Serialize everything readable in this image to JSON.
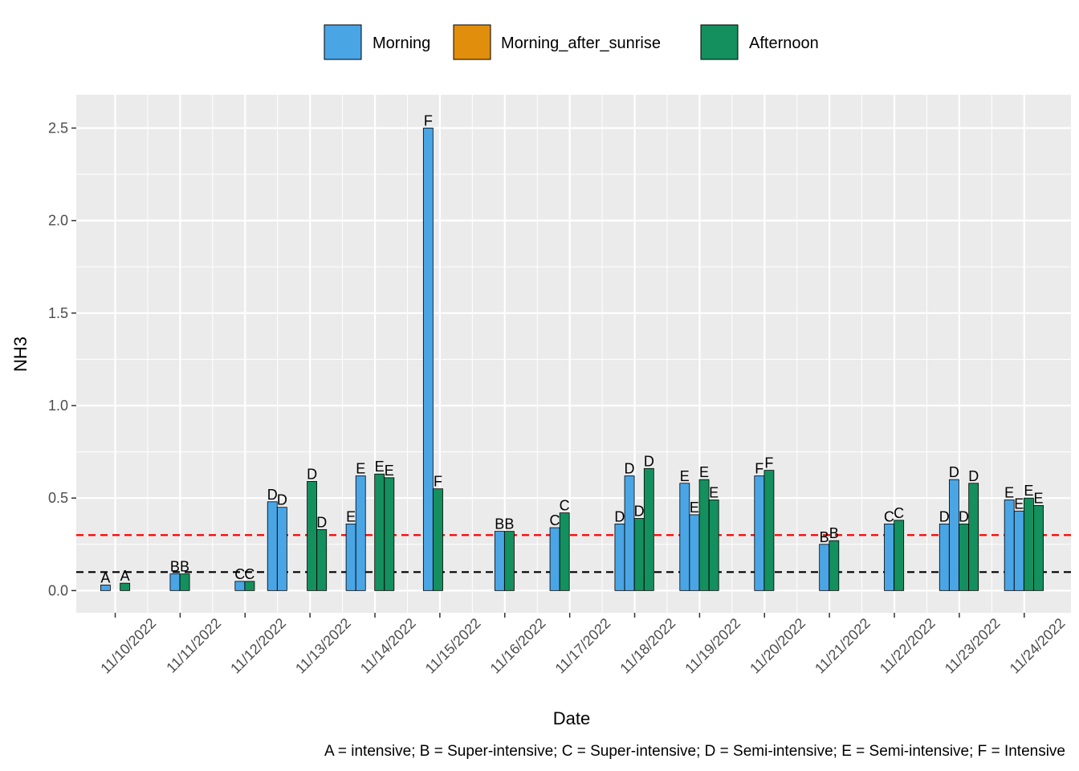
{
  "chart_data": {
    "type": "bar",
    "xlabel": "Date",
    "ylabel": "NH3",
    "ylim": [
      -0.12,
      2.68
    ],
    "yticks": [
      "0.0",
      "0.5",
      "1.0",
      "1.5",
      "2.0",
      "2.5"
    ],
    "ytick_values": [
      0,
      0.5,
      1.0,
      1.5,
      2.0,
      2.5
    ],
    "dates": [
      "11/10/2022",
      "11/11/2022",
      "11/12/2022",
      "11/13/2022",
      "11/14/2022",
      "11/15/2022",
      "11/16/2022",
      "11/17/2022",
      "11/18/2022",
      "11/19/2022",
      "11/20/2022",
      "11/21/2022",
      "11/22/2022",
      "11/23/2022",
      "11/24/2022"
    ],
    "xlim_days": [
      -0.6,
      14.72
    ],
    "legend": {
      "position": "top",
      "entries": [
        {
          "name": "Morning",
          "color": "#4AA5E5"
        },
        {
          "name": "Morning_after_sunrise",
          "color": "#E08E0B"
        },
        {
          "name": "Afternoon",
          "color": "#148F5E"
        }
      ]
    },
    "reference_lines": [
      {
        "value": 0.3,
        "color": "#FF0000",
        "style": "dashed"
      },
      {
        "value": 0.1,
        "color": "#000000",
        "style": "dashed"
      }
    ],
    "bars": [
      {
        "date": "11/10/2022",
        "offset": -0.15,
        "series": "Morning",
        "value": 0.03,
        "label": "A"
      },
      {
        "date": "11/10/2022",
        "offset": 0.15,
        "series": "Afternoon",
        "value": 0.04,
        "label": "A"
      },
      {
        "date": "11/11/2022",
        "offset": -0.08,
        "series": "Morning",
        "value": 0.09,
        "label": "B"
      },
      {
        "date": "11/11/2022",
        "offset": 0.07,
        "series": "Afternoon",
        "value": 0.09,
        "label": "B"
      },
      {
        "date": "11/12/2022",
        "offset": -0.08,
        "series": "Morning",
        "value": 0.05,
        "label": "C"
      },
      {
        "date": "11/12/2022",
        "offset": 0.07,
        "series": "Afternoon",
        "value": 0.05,
        "label": "C"
      },
      {
        "date": "11/13/2022",
        "offset": -0.58,
        "series": "Morning",
        "value": 0.48,
        "label": "D"
      },
      {
        "date": "11/13/2022",
        "offset": -0.43,
        "series": "Morning",
        "value": 0.45,
        "label": "D"
      },
      {
        "date": "11/13/2022",
        "offset": 0.03,
        "series": "Afternoon",
        "value": 0.59,
        "label": "D"
      },
      {
        "date": "11/13/2022",
        "offset": 0.18,
        "series": "Afternoon",
        "value": 0.33,
        "label": "D"
      },
      {
        "date": "11/13/2022",
        "offset": 0.63,
        "series": "Morning",
        "value": 0.36,
        "label": "E"
      },
      {
        "date": "11/13/2022",
        "offset": 0.78,
        "series": "Morning",
        "value": 0.62,
        "label": "E"
      },
      {
        "date": "11/14/2022",
        "offset": 0.07,
        "series": "Afternoon",
        "value": 0.63,
        "label": "E"
      },
      {
        "date": "11/14/2022",
        "offset": 0.22,
        "series": "Afternoon",
        "value": 0.61,
        "label": "E"
      },
      {
        "date": "11/14/2022",
        "offset": 0.82,
        "series": "Morning",
        "value": 2.5,
        "label": "F"
      },
      {
        "date": "11/14/2022",
        "offset": 0.97,
        "series": "Afternoon",
        "value": 0.55,
        "label": "F"
      },
      {
        "date": "11/16/2022",
        "offset": -0.08,
        "series": "Morning",
        "value": 0.32,
        "label": "B"
      },
      {
        "date": "11/16/2022",
        "offset": 0.07,
        "series": "Afternoon",
        "value": 0.32,
        "label": "B"
      },
      {
        "date": "11/17/2022",
        "offset": -0.23,
        "series": "Morning",
        "value": 0.34,
        "label": "C"
      },
      {
        "date": "11/17/2022",
        "offset": -0.08,
        "series": "Afternoon",
        "value": 0.42,
        "label": "C"
      },
      {
        "date": "11/18/2022",
        "offset": -0.23,
        "series": "Morning",
        "value": 0.36,
        "label": "D"
      },
      {
        "date": "11/18/2022",
        "offset": -0.08,
        "series": "Morning",
        "value": 0.62,
        "label": "D"
      },
      {
        "date": "11/18/2022",
        "offset": 0.07,
        "series": "Afternoon",
        "value": 0.39,
        "label": "D"
      },
      {
        "date": "11/18/2022",
        "offset": 0.22,
        "series": "Afternoon",
        "value": 0.66,
        "label": "D"
      },
      {
        "date": "11/19/2022",
        "offset": -0.23,
        "series": "Morning",
        "value": 0.58,
        "label": "E"
      },
      {
        "date": "11/19/2022",
        "offset": -0.08,
        "series": "Morning",
        "value": 0.41,
        "label": "E"
      },
      {
        "date": "11/19/2022",
        "offset": 0.07,
        "series": "Afternoon",
        "value": 0.6,
        "label": "E"
      },
      {
        "date": "11/19/2022",
        "offset": 0.22,
        "series": "Afternoon",
        "value": 0.49,
        "label": "E"
      },
      {
        "date": "11/20/2022",
        "offset": -0.08,
        "series": "Morning",
        "value": 0.62,
        "label": "F"
      },
      {
        "date": "11/20/2022",
        "offset": 0.07,
        "series": "Afternoon",
        "value": 0.65,
        "label": "F"
      },
      {
        "date": "11/21/2022",
        "offset": -0.08,
        "series": "Morning",
        "value": 0.25,
        "label": "B"
      },
      {
        "date": "11/21/2022",
        "offset": 0.07,
        "series": "Afternoon",
        "value": 0.27,
        "label": "B"
      },
      {
        "date": "11/22/2022",
        "offset": -0.08,
        "series": "Morning",
        "value": 0.36,
        "label": "C"
      },
      {
        "date": "11/22/2022",
        "offset": 0.07,
        "series": "Afternoon",
        "value": 0.38,
        "label": "C"
      },
      {
        "date": "11/23/2022",
        "offset": -0.23,
        "series": "Morning",
        "value": 0.36,
        "label": "D"
      },
      {
        "date": "11/23/2022",
        "offset": -0.08,
        "series": "Morning",
        "value": 0.6,
        "label": "D"
      },
      {
        "date": "11/23/2022",
        "offset": 0.07,
        "series": "Afternoon",
        "value": 0.36,
        "label": "D"
      },
      {
        "date": "11/23/2022",
        "offset": 0.22,
        "series": "Afternoon",
        "value": 0.58,
        "label": "D"
      },
      {
        "date": "11/24/2022",
        "offset": -0.23,
        "series": "Morning",
        "value": 0.49,
        "label": "E"
      },
      {
        "date": "11/24/2022",
        "offset": -0.08,
        "series": "Morning",
        "value": 0.43,
        "label": "E"
      },
      {
        "date": "11/24/2022",
        "offset": 0.07,
        "series": "Afternoon",
        "value": 0.5,
        "label": "E"
      },
      {
        "date": "11/24/2022",
        "offset": 0.22,
        "series": "Afternoon",
        "value": 0.46,
        "label": "E"
      }
    ],
    "caption": "A = intensive;  B = Super-intensive;  C = Super-intensive;  D = Semi-intensive;  E = Semi-intensive;  F = Intensive"
  }
}
